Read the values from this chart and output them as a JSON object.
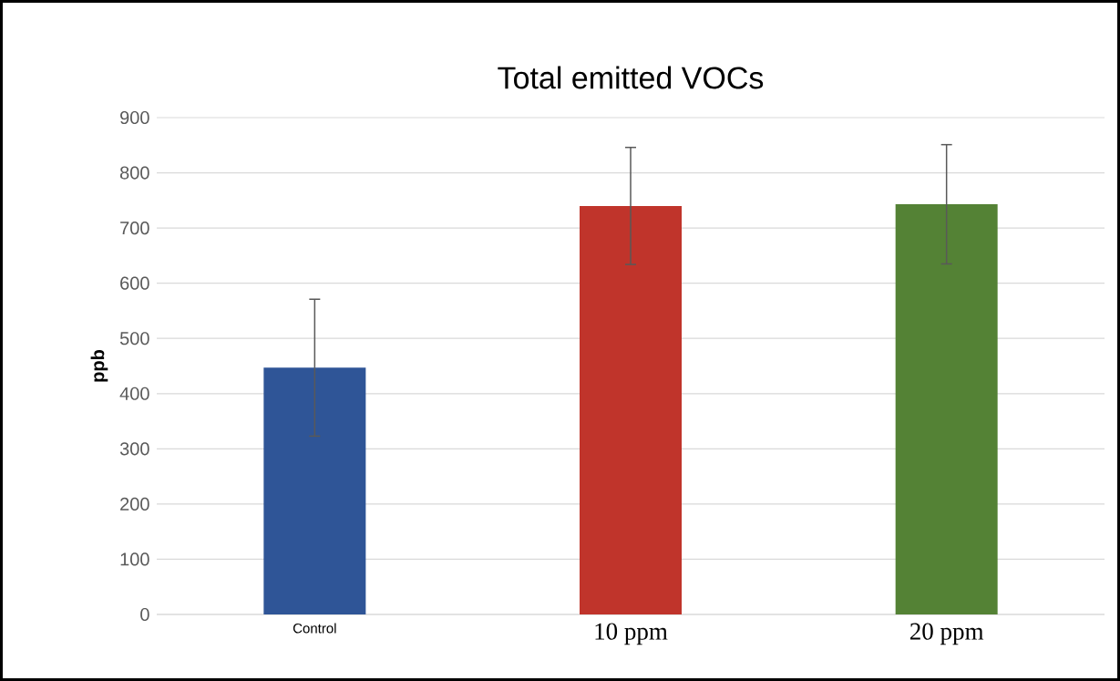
{
  "chart_data": {
    "type": "bar",
    "title": "Total emitted VOCs",
    "ylabel": "ppb",
    "categories": [
      "Control",
      "10 ppm",
      "20 ppm"
    ],
    "values": [
      447,
      740,
      743
    ],
    "errors": [
      124,
      106,
      108
    ],
    "colors": [
      "#2f5597",
      "#c0342b",
      "#548235"
    ],
    "ylim": [
      0,
      900
    ],
    "yticks": [
      0,
      100,
      200,
      300,
      400,
      500,
      600,
      700,
      800,
      900
    ],
    "grid": "y"
  }
}
